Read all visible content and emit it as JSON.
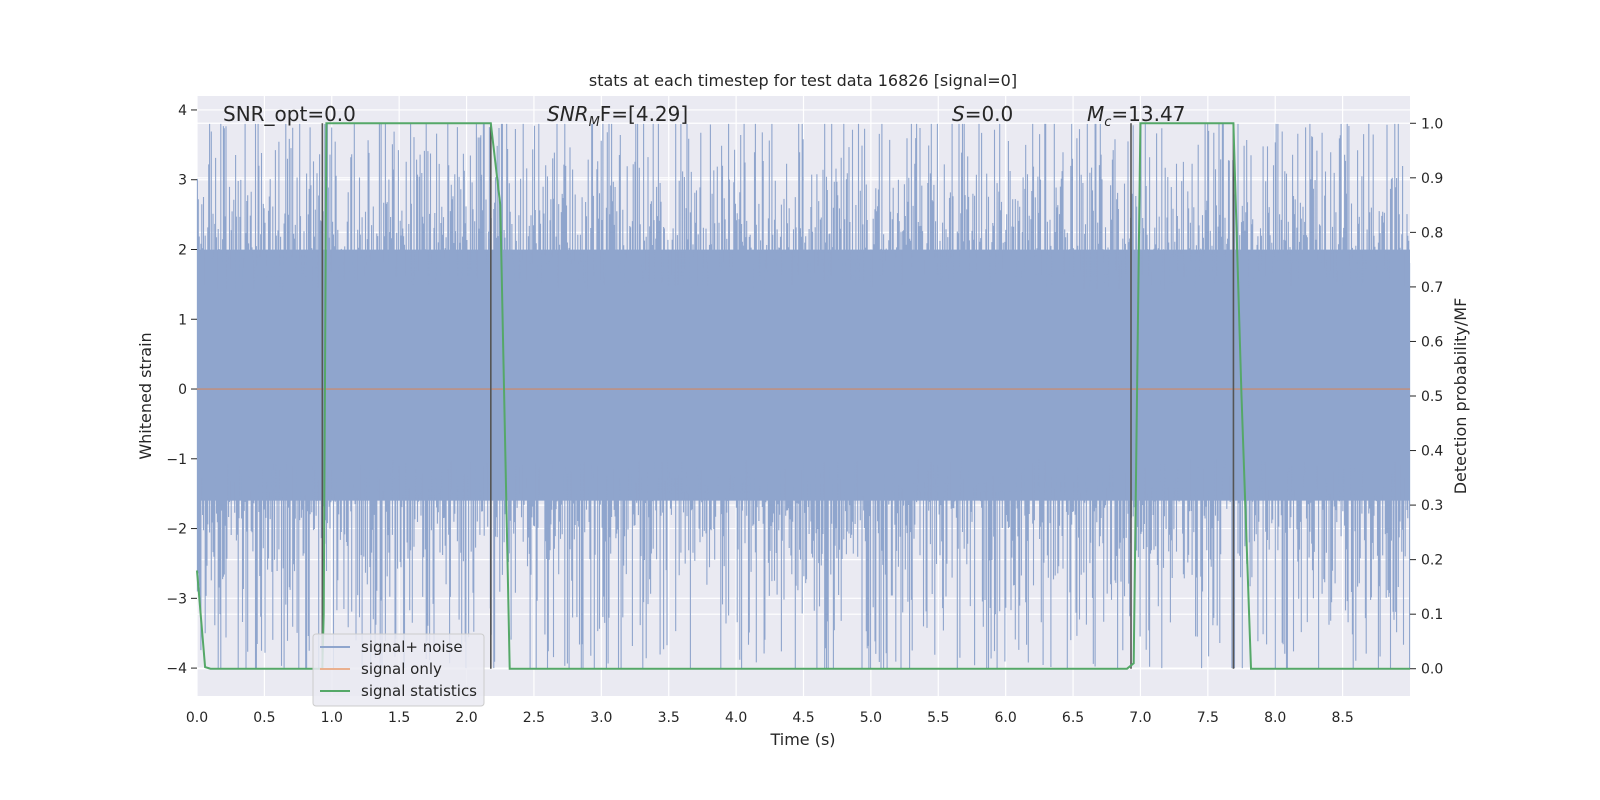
{
  "chart_data": {
    "type": "line",
    "title": "stats at each timestep for test data 16826 [signal=0]",
    "xlabel": "Time (s)",
    "ylabel": "Whitened strain",
    "y2label": "Detection probability/MF",
    "xlim": [
      0.0,
      9.0
    ],
    "ylim": [
      -4.4,
      4.2
    ],
    "y2lim": [
      -0.05,
      1.05
    ],
    "x_ticks": [
      "0.0",
      "0.5",
      "1.0",
      "1.5",
      "2.0",
      "2.5",
      "3.0",
      "3.5",
      "4.0",
      "4.5",
      "5.0",
      "5.5",
      "6.0",
      "6.5",
      "7.0",
      "7.5",
      "8.0",
      "8.5"
    ],
    "y_ticks": [
      "4",
      "3",
      "2",
      "1",
      "0",
      "−1",
      "−2",
      "−3",
      "−4"
    ],
    "y2_ticks": [
      "1.0",
      "0.9",
      "0.8",
      "0.7",
      "0.6",
      "0.5",
      "0.4",
      "0.3",
      "0.2",
      "0.1",
      "0.0"
    ],
    "grid": true,
    "legend_position": "bottom-left",
    "annotations": [
      {
        "text": "SNR_opt=0.0"
      },
      {
        "main": "SNR",
        "sub": "M",
        "tail": "F=[4.29]"
      },
      {
        "main": "S",
        "sub": "",
        "tail": "=0.0"
      },
      {
        "main": "M",
        "sub": "c",
        "tail": "=13.47"
      }
    ],
    "noise_band": {
      "min": -4.0,
      "max": 3.8,
      "dense_min": -1.6,
      "dense_max": 2.0
    },
    "series": [
      {
        "name": "signal+ noise",
        "color": "#8fa5cd"
      },
      {
        "name": "signal only",
        "color": "#dd8452",
        "values_const": 0.0
      },
      {
        "name": "signal statistics",
        "color": "#55a868",
        "axis": "right",
        "x": [
          0.0,
          0.06,
          0.1,
          0.93,
          0.94,
          0.96,
          1.0,
          1.5,
          2.0,
          2.18,
          2.25,
          2.32,
          2.5,
          6.9,
          6.95,
          7.0,
          7.5,
          7.69,
          7.75,
          7.82,
          7.9,
          9.0
        ],
        "values": [
          0.18,
          0.003,
          0.0,
          0.0,
          0.1,
          1.0,
          1.0,
          1.0,
          1.0,
          1.0,
          0.85,
          0.0,
          0.0,
          0.0,
          0.01,
          1.0,
          1.0,
          1.0,
          0.5,
          0.0,
          0.0,
          0.0
        ]
      }
    ],
    "event_markers": {
      "color": "#555555",
      "x": [
        0.93,
        2.18,
        6.93,
        7.69
      ]
    }
  }
}
